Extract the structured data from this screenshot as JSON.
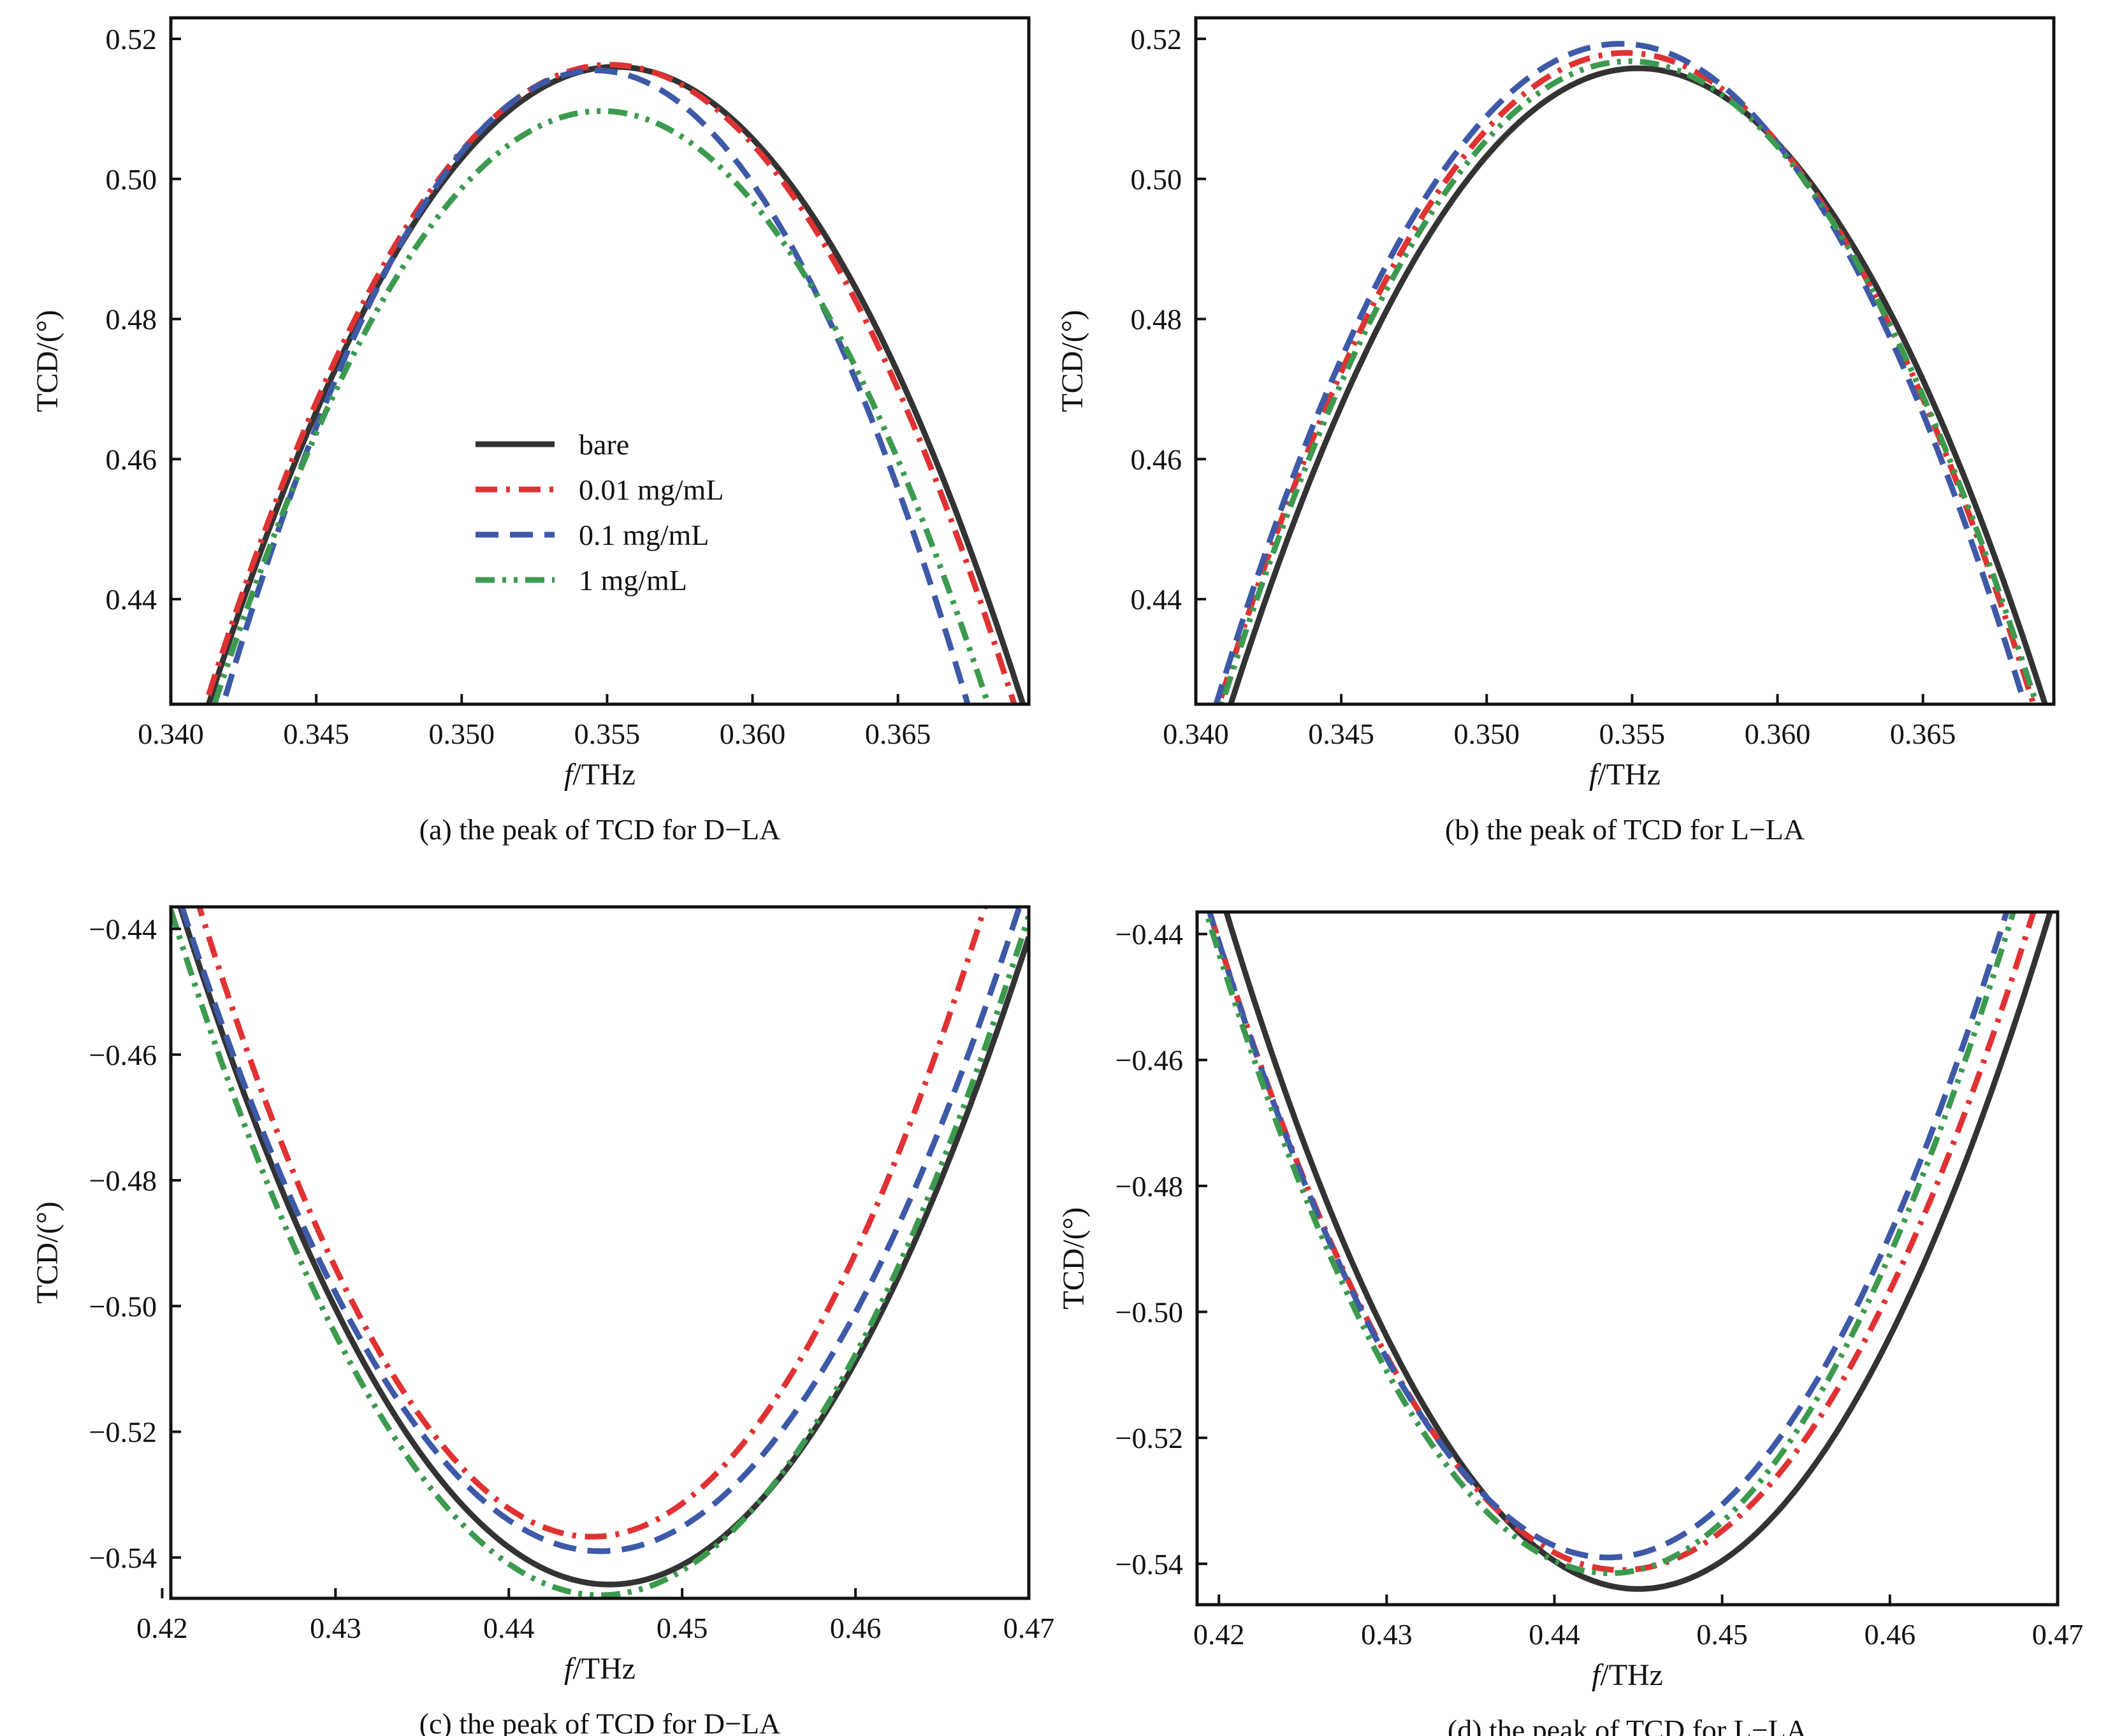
{
  "series_styles": [
    {
      "name": "bare",
      "color": "#333333",
      "dash": "solid"
    },
    {
      "name": "0.01 mg/mL",
      "color": "#e03232",
      "dash": "dashdot"
    },
    {
      "name": "0.1 mg/mL",
      "color": "#3d59a8",
      "dash": "dashed"
    },
    {
      "name": "1 mg/mL",
      "color": "#3c9a4f",
      "dash": "dashdotdot"
    }
  ],
  "chart_data": [
    {
      "type": "line",
      "caption": "(a) the peak of TCD for D−LA",
      "xlabel_italic": "f",
      "xlabel_rest": "/THz",
      "ylabel": "TCD/(°)",
      "xlim": [
        0.34,
        0.3695
      ],
      "ylim": [
        0.425,
        0.523
      ],
      "xticks": [
        0.34,
        0.345,
        0.35,
        0.355,
        0.36,
        0.365
      ],
      "xtick_labels": [
        "0.340",
        "0.345",
        "0.350",
        "0.355",
        "0.360",
        "0.365"
      ],
      "yticks": [
        0.44,
        0.46,
        0.48,
        0.5,
        0.52
      ],
      "ytick_labels": [
        "0.44",
        "0.46",
        "0.48",
        "0.50",
        "0.52"
      ],
      "legend": "center-left",
      "series": [
        {
          "name": "bare",
          "extremum_x": 0.3553,
          "extremum_y": 0.516,
          "crossing_x": 0.3413,
          "crossing_y": 0.425
        },
        {
          "name": "0.01 mg/mL",
          "extremum_x": 0.3551,
          "extremum_y": 0.5163,
          "crossing_x": 0.3412,
          "crossing_y": 0.425
        },
        {
          "name": "0.1 mg/mL",
          "extremum_x": 0.3546,
          "extremum_y": 0.5155,
          "crossing_x": 0.3418,
          "crossing_y": 0.425
        },
        {
          "name": "1 mg/mL",
          "extremum_x": 0.3548,
          "extremum_y": 0.5097,
          "crossing_x": 0.3415,
          "crossing_y": 0.425
        }
      ]
    },
    {
      "type": "line",
      "caption": "(b) the peak of TCD for L−LA",
      "xlabel_italic": "f",
      "xlabel_rest": "/THz",
      "ylabel": "TCD/(°)",
      "xlim": [
        0.34,
        0.3695
      ],
      "ylim": [
        0.425,
        0.523
      ],
      "xticks": [
        0.34,
        0.345,
        0.35,
        0.355,
        0.36,
        0.365
      ],
      "xtick_labels": [
        "0.340",
        "0.345",
        "0.350",
        "0.355",
        "0.360",
        "0.365"
      ],
      "yticks": [
        0.44,
        0.46,
        0.48,
        0.5,
        0.52
      ],
      "ytick_labels": [
        "0.44",
        "0.46",
        "0.48",
        "0.50",
        "0.52"
      ],
      "series": [
        {
          "name": "bare",
          "extremum_x": 0.3552,
          "extremum_y": 0.5158,
          "crossing_x": 0.3412,
          "crossing_y": 0.425
        },
        {
          "name": "0.01 mg/mL",
          "extremum_x": 0.3548,
          "extremum_y": 0.518,
          "crossing_x": 0.3408,
          "crossing_y": 0.425
        },
        {
          "name": "0.1 mg/mL",
          "extremum_x": 0.3546,
          "extremum_y": 0.5193,
          "crossing_x": 0.3407,
          "crossing_y": 0.425
        },
        {
          "name": "1 mg/mL",
          "extremum_x": 0.3549,
          "extremum_y": 0.5168,
          "crossing_x": 0.3409,
          "crossing_y": 0.425
        }
      ]
    },
    {
      "type": "line",
      "caption": "(c) the peak of TCD for D−LA",
      "xlabel_italic": "f",
      "xlabel_rest": "/THz",
      "ylabel": "TCD/(°)",
      "xlim": [
        0.4205,
        0.47
      ],
      "ylim": [
        -0.5465,
        -0.4365
      ],
      "xticks": [
        0.42,
        0.43,
        0.44,
        0.45,
        0.46,
        0.47
      ],
      "xtick_labels": [
        "0.42",
        "0.43",
        "0.44",
        "0.45",
        "0.46",
        "0.47"
      ],
      "yticks": [
        -0.44,
        -0.46,
        -0.48,
        -0.5,
        -0.52,
        -0.54
      ],
      "ytick_labels": [
        "−0.44",
        "−0.46",
        "−0.48",
        "−0.50",
        "−0.52",
        "−0.54"
      ],
      "series": [
        {
          "name": "bare",
          "extremum_x": 0.4458,
          "extremum_y": -0.5443,
          "crossing_x": 0.4211,
          "crossing_y": -0.437
        },
        {
          "name": "0.01 mg/mL",
          "extremum_x": 0.4448,
          "extremum_y": -0.5367,
          "crossing_x": 0.4222,
          "crossing_y": -0.437
        },
        {
          "name": "0.1 mg/mL",
          "extremum_x": 0.4453,
          "extremum_y": -0.539,
          "crossing_x": 0.4212,
          "crossing_y": -0.437
        },
        {
          "name": "1 mg/mL",
          "extremum_x": 0.4453,
          "extremum_y": -0.546,
          "crossing_x": 0.4205,
          "crossing_y": -0.437
        }
      ]
    },
    {
      "type": "line",
      "caption": "(d) the peak of TCD for L−LA",
      "xlabel_italic": "f",
      "xlabel_rest": "/THz",
      "ylabel": "TCD/(°)",
      "xlim": [
        0.4187,
        0.47
      ],
      "ylim": [
        -0.5465,
        -0.4365
      ],
      "xticks": [
        0.42,
        0.43,
        0.44,
        0.45,
        0.46,
        0.47
      ],
      "xtick_labels": [
        "0.42",
        "0.43",
        "0.44",
        "0.45",
        "0.46",
        "0.47"
      ],
      "yticks": [
        -0.44,
        -0.46,
        -0.48,
        -0.5,
        -0.52,
        -0.54
      ],
      "ytick_labels": [
        "−0.44",
        "−0.46",
        "−0.48",
        "−0.50",
        "−0.52",
        "−0.54"
      ],
      "series": [
        {
          "name": "bare",
          "extremum_x": 0.445,
          "extremum_y": -0.544,
          "crossing_x": 0.4205,
          "crossing_y": -0.437
        },
        {
          "name": "0.01 mg/mL",
          "extremum_x": 0.444,
          "extremum_y": -0.541,
          "crossing_x": 0.4195,
          "crossing_y": -0.437
        },
        {
          "name": "0.1 mg/mL",
          "extremum_x": 0.4432,
          "extremum_y": -0.539,
          "crossing_x": 0.4195,
          "crossing_y": -0.437
        },
        {
          "name": "1 mg/mL",
          "extremum_x": 0.4433,
          "extremum_y": -0.5415,
          "crossing_x": 0.4193,
          "crossing_y": -0.437
        }
      ]
    }
  ]
}
